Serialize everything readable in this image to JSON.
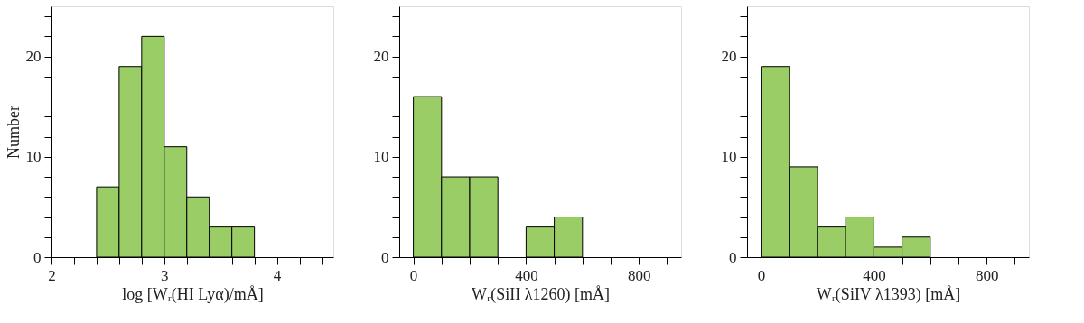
{
  "chart_data": [
    {
      "type": "histogram",
      "xlabel": "log  [Wᵣ(HI Lyα)/mÅ]",
      "ylabel": "Number",
      "bins": [
        2.4,
        2.6,
        2.8,
        3.0,
        3.2,
        3.4,
        3.6,
        3.8
      ],
      "values": [
        7,
        19,
        22,
        11,
        6,
        3,
        3
      ],
      "color": "#9acd66",
      "xlim": [
        2,
        4.5
      ],
      "ylim": [
        0,
        25
      ],
      "xticks": [
        2,
        {
          "value": 2.2,
          "label": null
        },
        {
          "value": 2.4,
          "label": null
        },
        {
          "value": 2.6,
          "label": null
        },
        {
          "value": 2.8,
          "label": null
        },
        3,
        {
          "value": 3.2,
          "label": null
        },
        {
          "value": 3.4,
          "label": null
        },
        {
          "value": 3.6,
          "label": null
        },
        {
          "value": 3.8,
          "label": null
        },
        4,
        {
          "value": 4.2,
          "label": null
        },
        {
          "value": 4.4,
          "label": null
        }
      ],
      "yticks": [
        0,
        {
          "value": 2,
          "label": null
        },
        {
          "value": 4,
          "label": null
        },
        {
          "value": 6,
          "label": null
        },
        {
          "value": 8,
          "label": null
        },
        10,
        {
          "value": 12,
          "label": null
        },
        {
          "value": 14,
          "label": null
        },
        {
          "value": 16,
          "label": null
        },
        {
          "value": 18,
          "label": null
        },
        20,
        {
          "value": 22,
          "label": null
        },
        {
          "value": 24,
          "label": null
        }
      ],
      "grid": false,
      "legend": false
    },
    {
      "type": "histogram",
      "xlabel": "Wᵣ(SiII λ1260)  [mÅ]",
      "bins": [
        0,
        100,
        200,
        300,
        400,
        500,
        600
      ],
      "values": [
        16,
        8,
        8,
        0,
        3,
        4
      ],
      "color": "#9acd66",
      "xlim": [
        -50,
        950
      ],
      "ylim": [
        0,
        25
      ],
      "xticks": [
        0,
        {
          "value": 100,
          "label": null
        },
        {
          "value": 200,
          "label": null
        },
        {
          "value": 300,
          "label": null
        },
        400,
        {
          "value": 500,
          "label": null
        },
        {
          "value": 600,
          "label": null
        },
        {
          "value": 700,
          "label": null
        },
        800,
        {
          "value": 900,
          "label": null
        }
      ],
      "yticks": [
        0,
        {
          "value": 2,
          "label": null
        },
        {
          "value": 4,
          "label": null
        },
        {
          "value": 6,
          "label": null
        },
        {
          "value": 8,
          "label": null
        },
        10,
        {
          "value": 12,
          "label": null
        },
        {
          "value": 14,
          "label": null
        },
        {
          "value": 16,
          "label": null
        },
        {
          "value": 18,
          "label": null
        },
        20,
        {
          "value": 22,
          "label": null
        },
        {
          "value": 24,
          "label": null
        }
      ],
      "grid": false,
      "legend": false
    },
    {
      "type": "histogram",
      "xlabel": "Wᵣ(SiIV λ1393)  [mÅ]",
      "bins": [
        0,
        100,
        200,
        300,
        400,
        500,
        600
      ],
      "values": [
        19,
        9,
        3,
        4,
        1,
        2
      ],
      "color": "#9acd66",
      "xlim": [
        -50,
        950
      ],
      "ylim": [
        0,
        25
      ],
      "xticks": [
        0,
        {
          "value": 100,
          "label": null
        },
        {
          "value": 200,
          "label": null
        },
        {
          "value": 300,
          "label": null
        },
        400,
        {
          "value": 500,
          "label": null
        },
        {
          "value": 600,
          "label": null
        },
        {
          "value": 700,
          "label": null
        },
        800,
        {
          "value": 900,
          "label": null
        }
      ],
      "yticks": [
        0,
        {
          "value": 2,
          "label": null
        },
        {
          "value": 4,
          "label": null
        },
        {
          "value": 6,
          "label": null
        },
        {
          "value": 8,
          "label": null
        },
        10,
        {
          "value": 12,
          "label": null
        },
        {
          "value": 14,
          "label": null
        },
        {
          "value": 16,
          "label": null
        },
        {
          "value": 18,
          "label": null
        },
        20,
        {
          "value": 22,
          "label": null
        },
        {
          "value": 24,
          "label": null
        }
      ],
      "grid": false,
      "legend": false
    }
  ]
}
